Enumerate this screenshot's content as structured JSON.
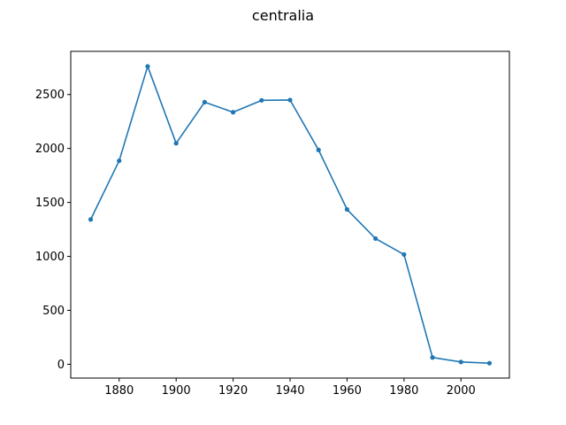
{
  "chart_data": {
    "type": "line",
    "title": "centralia",
    "xlabel": "",
    "ylabel": "",
    "xlim": [
      1863,
      2017
    ],
    "ylim": [
      -128,
      2900
    ],
    "xticks": [
      1880,
      1900,
      1920,
      1940,
      1960,
      1980,
      2000
    ],
    "xtick_labels": [
      "1880",
      "1900",
      "1920",
      "1940",
      "1960",
      "1980",
      "2000"
    ],
    "yticks": [
      0,
      500,
      1000,
      1500,
      2000,
      2500
    ],
    "ytick_labels": [
      "0",
      "500",
      "1000",
      "1500",
      "2000",
      "2500"
    ],
    "grid": false,
    "legend": "none",
    "series": [
      {
        "color": "#1f77b4",
        "marker": "circle",
        "x": [
          1870,
          1880,
          1890,
          1900,
          1910,
          1920,
          1930,
          1940,
          1950,
          1960,
          1970,
          1980,
          1990,
          2000,
          2010
        ],
        "y": [
          1342,
          1886,
          2761,
          2048,
          2429,
          2336,
          2446,
          2449,
          1986,
          1435,
          1165,
          1017,
          63,
          21,
          10
        ]
      }
    ]
  }
}
